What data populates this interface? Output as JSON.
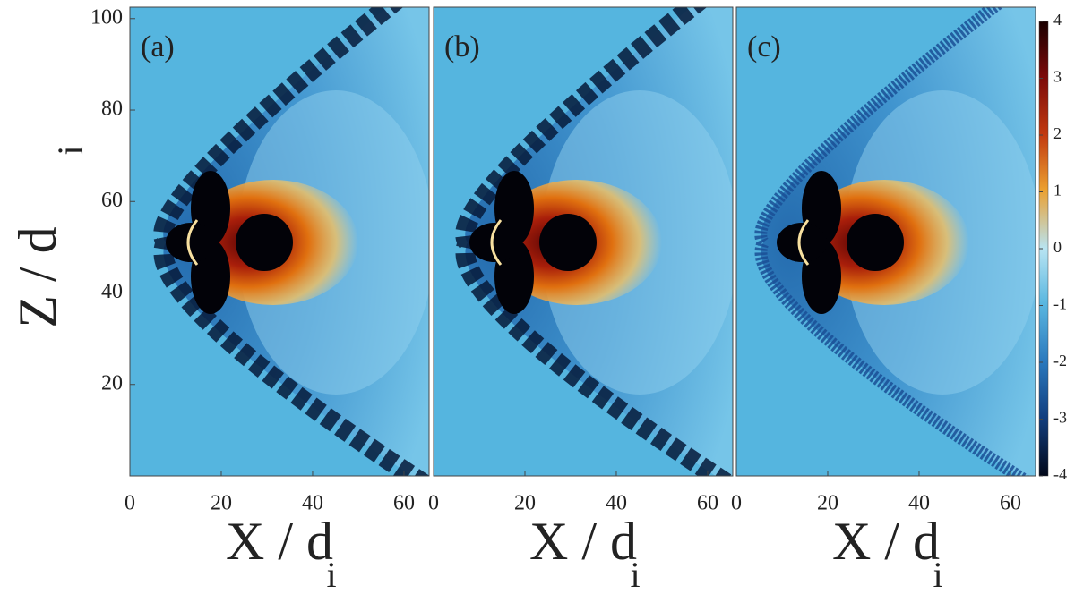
{
  "chart_data": [
    {
      "type": "heatmap",
      "label": "(a)",
      "xlabel": "X / d",
      "xlabel_sub": "i",
      "xlim": [
        0,
        65.5
      ],
      "xticks": [
        0,
        20,
        40,
        60
      ],
      "ylabel": "Z / d",
      "ylabel_sub": "i",
      "ylim": [
        0,
        102.5
      ],
      "yticks": [
        20,
        40,
        60,
        80,
        100
      ]
    },
    {
      "type": "heatmap",
      "label": "(b)",
      "xlabel": "X / d",
      "xlabel_sub": "i",
      "xlim": [
        0,
        65.5
      ],
      "xticks": [
        0,
        20,
        40,
        60
      ],
      "ylim": [
        0,
        102.5
      ]
    },
    {
      "type": "heatmap",
      "label": "(c)",
      "xlabel": "X / d",
      "xlabel_sub": "i",
      "xlim": [
        0,
        65.5
      ],
      "xticks": [
        0,
        20,
        40,
        60
      ],
      "ylim": [
        0,
        102.5
      ],
      "colorbar": {
        "clim": [
          -4,
          4
        ],
        "ticks": [
          4,
          3,
          2,
          1,
          0,
          -1,
          -2,
          -3,
          -4
        ]
      }
    }
  ]
}
